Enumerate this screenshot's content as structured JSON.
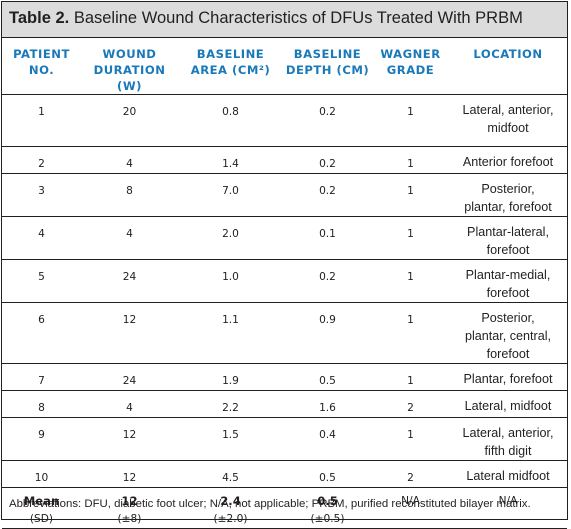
{
  "title": {
    "label": "Table 2.",
    "text": "Baseline Wound Characteristics of DFUs Treated With PRBM"
  },
  "columns": [
    {
      "line1": "PATIENT",
      "line2": "NO.",
      "line3": ""
    },
    {
      "line1": "WOUND",
      "line2": "DURATION",
      "line3": "(W)"
    },
    {
      "line1": "BASELINE",
      "line2": "AREA (CM²)",
      "line3": ""
    },
    {
      "line1": "BASELINE",
      "line2": "DEPTH (CM)",
      "line3": ""
    },
    {
      "line1": "WAGNER",
      "line2": "GRADE",
      "line3": ""
    },
    {
      "line1": "LOCATION",
      "line2": "",
      "line3": ""
    }
  ],
  "rows": [
    {
      "patient": "1",
      "duration": "20",
      "area": "0.8",
      "depth": "0.2",
      "grade": "1",
      "location": [
        "Lateral, anterior,",
        "midfoot"
      ]
    },
    {
      "patient": "2",
      "duration": "4",
      "area": "1.4",
      "depth": "0.2",
      "grade": "1",
      "location": [
        "Anterior forefoot"
      ]
    },
    {
      "patient": "3",
      "duration": "8",
      "area": "7.0",
      "depth": "0.2",
      "grade": "1",
      "location": [
        "Posterior,",
        "plantar, forefoot"
      ]
    },
    {
      "patient": "4",
      "duration": "4",
      "area": "2.0",
      "depth": "0.1",
      "grade": "1",
      "location": [
        "Plantar-lateral,",
        "forefoot"
      ]
    },
    {
      "patient": "5",
      "duration": "24",
      "area": "1.0",
      "depth": "0.2",
      "grade": "1",
      "location": [
        "Plantar-medial,",
        "forefoot"
      ]
    },
    {
      "patient": "6",
      "duration": "12",
      "area": "1.1",
      "depth": "0.9",
      "grade": "1",
      "location": [
        "Posterior,",
        "plantar, central,",
        "forefoot"
      ]
    },
    {
      "patient": "7",
      "duration": "24",
      "area": "1.9",
      "depth": "0.5",
      "grade": "1",
      "location": [
        "Plantar, forefoot"
      ]
    },
    {
      "patient": "8",
      "duration": "4",
      "area": "2.2",
      "depth": "1.6",
      "grade": "2",
      "location": [
        "Lateral, midfoot"
      ]
    },
    {
      "patient": "9",
      "duration": "12",
      "area": "1.5",
      "depth": "0.4",
      "grade": "1",
      "location": [
        "Lateral, anterior,",
        "fifth digit"
      ]
    },
    {
      "patient": "10",
      "duration": "12",
      "area": "4.5",
      "depth": "0.5",
      "grade": "2",
      "location": [
        "Lateral midfoot"
      ]
    }
  ],
  "summary": {
    "label": "Mean",
    "label_sd": "(SD)",
    "duration": "12",
    "duration_sd": "(±8)",
    "area": "2.4",
    "area_sd": "(±2.0)",
    "depth": "0.5",
    "depth_sd": "(±0.5)",
    "grade": "N/A",
    "location": "N/A"
  },
  "footnote": "Abbreviations: DFU, diabetic foot ulcer; N/A, not applicable; PRBM, purified reconstituted bilayer matrix."
}
